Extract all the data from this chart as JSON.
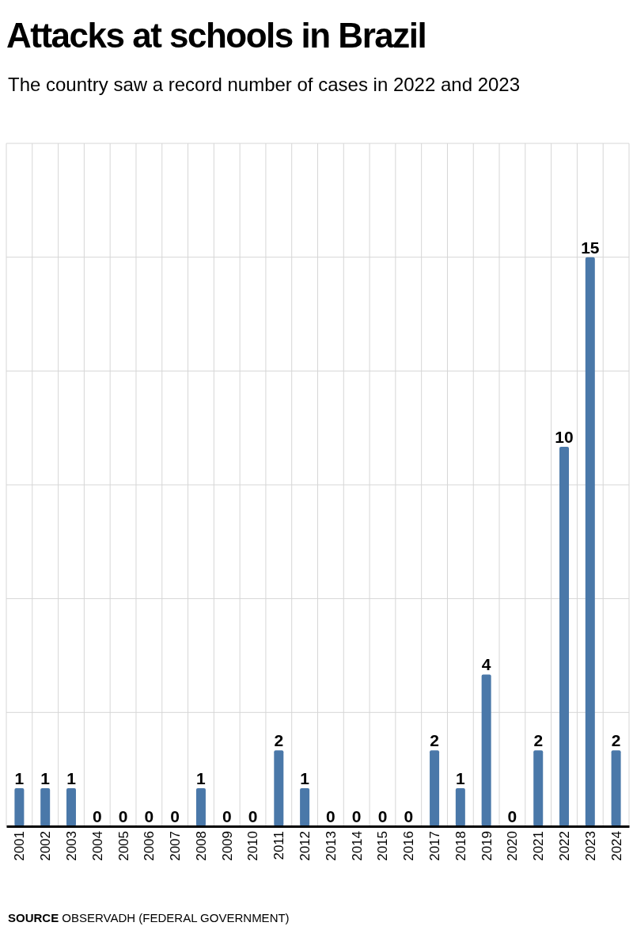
{
  "chart_data": {
    "type": "bar",
    "title": "Attacks at schools in Brazil",
    "subtitle": "The country saw a record number of cases in 2022 and 2023",
    "categories": [
      "2001",
      "2002",
      "2003",
      "2004",
      "2005",
      "2006",
      "2007",
      "2008",
      "2009",
      "2010",
      "2011",
      "2012",
      "2013",
      "2014",
      "2015",
      "2016",
      "2017",
      "2018",
      "2019",
      "2020",
      "2021",
      "2022",
      "2023",
      "2024"
    ],
    "values": [
      1,
      1,
      1,
      0,
      0,
      0,
      0,
      1,
      0,
      0,
      2,
      1,
      0,
      0,
      0,
      0,
      2,
      1,
      4,
      0,
      2,
      10,
      15,
      2
    ],
    "color": "#4a78a9",
    "data_labels": true,
    "ylim": [
      0,
      18
    ],
    "yticks": [
      {
        "value": 0,
        "label": null
      },
      {
        "value": 3,
        "label": null
      },
      {
        "value": 6,
        "label": null
      },
      {
        "value": 9,
        "label": null
      },
      {
        "value": 12,
        "label": null
      },
      {
        "value": 15,
        "label": null
      },
      {
        "value": 18,
        "label": null
      }
    ],
    "tick_labels": "x",
    "grid": true,
    "annotations": [
      "SOURCE OBSERVADH (FEDERAL GOVERNMENT)"
    ]
  }
}
